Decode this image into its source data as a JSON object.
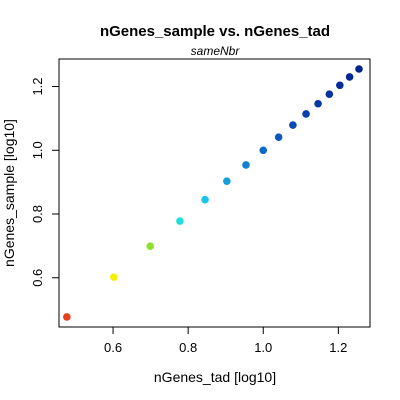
{
  "chart_data": {
    "type": "scatter",
    "title": "nGenes_sample vs. nGenes_tad",
    "subtitle": "sameNbr",
    "xlabel": "nGenes_tad [log10]",
    "ylabel": "nGenes_sample [log10]",
    "xlim": [
      0.48,
      1.255
    ],
    "ylim": [
      0.48,
      1.255
    ],
    "x_ticks": [
      0.6,
      0.8,
      1.0,
      1.2
    ],
    "x_tick_labels": [
      "0.6",
      "0.8",
      "1.0",
      "1.2"
    ],
    "y_ticks": [
      0.6,
      0.8,
      1.0,
      1.2
    ],
    "y_tick_labels": [
      "0.6",
      "0.8",
      "1.0",
      "1.2"
    ],
    "grid": false,
    "legend": "none",
    "points": [
      {
        "x": 0.477,
        "y": 0.477,
        "color": "#e8401c"
      },
      {
        "x": 0.602,
        "y": 0.602,
        "color": "#f2f200"
      },
      {
        "x": 0.699,
        "y": 0.699,
        "color": "#8fe02a"
      },
      {
        "x": 0.778,
        "y": 0.778,
        "color": "#1fe0d8"
      },
      {
        "x": 0.845,
        "y": 0.845,
        "color": "#18c4e8"
      },
      {
        "x": 0.903,
        "y": 0.903,
        "color": "#149fd8"
      },
      {
        "x": 0.954,
        "y": 0.954,
        "color": "#1080d0"
      },
      {
        "x": 1.0,
        "y": 1.0,
        "color": "#0c6ac6"
      },
      {
        "x": 1.041,
        "y": 1.041,
        "color": "#0a58bc"
      },
      {
        "x": 1.079,
        "y": 1.079,
        "color": "#084ab2"
      },
      {
        "x": 1.114,
        "y": 1.114,
        "color": "#0640aa"
      },
      {
        "x": 1.146,
        "y": 1.146,
        "color": "#0538a4"
      },
      {
        "x": 1.176,
        "y": 1.176,
        "color": "#04329e"
      },
      {
        "x": 1.204,
        "y": 1.204,
        "color": "#032c98"
      },
      {
        "x": 1.23,
        "y": 1.23,
        "color": "#022894"
      },
      {
        "x": 1.255,
        "y": 1.255,
        "color": "#01248e"
      }
    ]
  }
}
